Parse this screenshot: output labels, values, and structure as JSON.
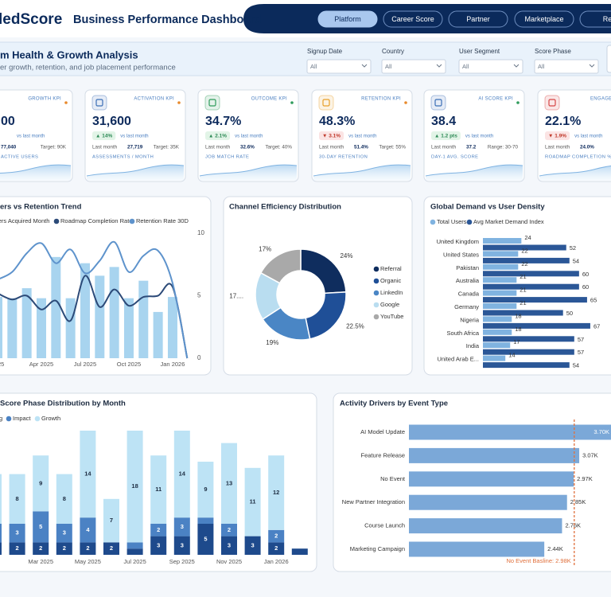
{
  "header": {
    "logo": "ledScore",
    "title": "Business Performance Dashboard",
    "nav": [
      "Platform",
      "Career Score",
      "Partner",
      "Marketplace",
      "Rep"
    ]
  },
  "page": {
    "title": "m Health & Growth Analysis",
    "subtitle": "er growth, retention, and job placement performance"
  },
  "filters": [
    {
      "label": "Signup Date",
      "value": "All"
    },
    {
      "label": "Country",
      "value": "All"
    },
    {
      "label": "User Segment",
      "value": "All"
    },
    {
      "label": "Score Phase",
      "value": "All"
    }
  ],
  "kpis": [
    {
      "tag": "GROWTH KPI",
      "value": "00",
      "delta_note": "vs last month",
      "last_value": "77,040",
      "target": "Target: 90K",
      "footer": "ACTIVE USERS",
      "icon_color": "#3b6fb6",
      "dot_color": "#e8892b"
    },
    {
      "tag": "ACTIVATION KPI",
      "value": "31,600",
      "delta": "▲ 14%",
      "delta_note": "vs last month",
      "last_label": "Last month",
      "last_value": "27,719",
      "target": "Target: 35K",
      "footer": "ASSESSMENTS / MONTH",
      "icon_color": "#3b6fb6",
      "dot_color": "#e8892b"
    },
    {
      "tag": "OUTCOME KPI",
      "value": "34.7%",
      "delta": "▲ 2.1%",
      "delta_note": "vs last month",
      "last_label": "Last month",
      "last_value": "32.6%",
      "target": "Target: 40%",
      "footer": "JOB MATCH RATE",
      "icon_color": "#2e9b5b",
      "dot_color": "#2e9b5b"
    },
    {
      "tag": "RETENTION KPI",
      "value": "48.3%",
      "delta": "▼ 3.1%",
      "delta_note": "vs last month",
      "last_label": "Last month",
      "last_value": "51.4%",
      "target": "Target: 55%",
      "footer": "30-DAY RETENTION",
      "icon_color": "#e8a02b",
      "dot_color": "#e8892b"
    },
    {
      "tag": "AI SCORE KPI",
      "value": "38.4",
      "delta": "▲ 1.2 pts",
      "delta_note": "vs last month",
      "last_label": "Last month",
      "last_value": "37.2",
      "target": "Range: 30-70",
      "footer": "DAY-1 AVG. SCORE",
      "icon_color": "#3b6fb6",
      "dot_color": "#2e9b5b"
    },
    {
      "tag": "ENGAGEM",
      "value": "22.1%",
      "delta": "▼ 1.9%",
      "delta_note": "vs last month",
      "last_label": "Last month",
      "last_value": "24.0%",
      "footer": "ROADMAP COMPLETION %",
      "icon_color": "#d64545",
      "dot_color": "#e8892b"
    }
  ],
  "chart_data": [
    {
      "type": "combo",
      "title": "ers vs Retention Trend",
      "categories": [
        "2025",
        null,
        null,
        "Apr 2025",
        null,
        null,
        "Jul 2025",
        null,
        null,
        "Oct 2025",
        null,
        null,
        "Jan 2026",
        null
      ],
      "series": [
        {
          "name": "sers Acquired Month",
          "kind": "bar",
          "color": "#a8d4ef",
          "values": [
            4.9,
            4.8,
            5.6,
            4.8,
            8.1,
            4.8,
            7.6,
            6.6,
            7.3,
            4.8,
            6.2,
            3.7,
            4.9,
            0
          ]
        },
        {
          "name": "Roadmap Completion Rate",
          "kind": "line",
          "color": "#2c4a78",
          "values": [
            5.2,
            4.7,
            5.0,
            3.9,
            4.6,
            3.0,
            6.6,
            4.1,
            5.5,
            4.2,
            4.9,
            5.0,
            5.7,
            0
          ]
        },
        {
          "name": "Retention Rate 30D",
          "kind": "line",
          "color": "#5e93cc",
          "values": [
            6.3,
            6.9,
            8.4,
            9.2,
            7.6,
            8.7,
            6.8,
            7.8,
            9.3,
            6.9,
            8.2,
            8.6,
            6.0,
            0
          ]
        }
      ],
      "ylim": [
        0,
        10
      ],
      "yticks": [
        0,
        5,
        10
      ]
    },
    {
      "type": "donut",
      "title": "Channel Efficiency Distribution",
      "categories": [
        "Referral",
        "Organic",
        "LinkedIn",
        "Google",
        "YouTube"
      ],
      "values": [
        24,
        22.5,
        19,
        17,
        17
      ],
      "value_labels": [
        "24%",
        "22.5%",
        "19%",
        "17....",
        "17%"
      ],
      "colors": [
        "#0f2d5e",
        "#1f4f97",
        "#4a86c5",
        "#b9ddf0",
        "#a9a9a9"
      ]
    },
    {
      "type": "hbar_grouped",
      "title": "Global Demand vs User Density",
      "categories": [
        "United Kingdom",
        "United States",
        "Pakistan",
        "Australia",
        "Canada",
        "Germany",
        "Nigeria",
        "South Africa",
        "India",
        "United Arab E..."
      ],
      "series": [
        {
          "name": "Total Users",
          "color": "#80b3e0",
          "values": [
            24,
            22,
            22,
            21,
            21,
            21,
            18,
            18,
            17,
            14
          ]
        },
        {
          "name": "Avg Market Demand Index",
          "color": "#2b5797",
          "values": [
            52,
            54,
            60,
            60,
            65,
            50,
            67,
            57,
            57,
            54
          ]
        }
      ],
      "xlim": [
        0,
        70
      ]
    },
    {
      "type": "stacked_bar",
      "title": "Score Phase Distribution by Month",
      "categories": [
        "2025",
        null,
        "Mar 2025",
        null,
        "May 2025",
        null,
        "Jul 2025",
        null,
        "Sep 2025",
        null,
        "Nov 2025",
        null,
        "Jan 2026",
        null
      ],
      "series": [
        {
          "name": "g",
          "color": "#1e4a8c",
          "values": [
            2,
            2,
            2,
            2,
            2,
            2,
            1,
            3,
            3,
            5,
            3,
            3,
            2,
            1
          ]
        },
        {
          "name": "Impact",
          "color": "#4b82c4",
          "values": [
            3,
            3,
            5,
            3,
            4,
            0,
            1,
            2,
            3,
            1,
            2,
            0,
            2,
            0
          ]
        },
        {
          "name": "Growth",
          "color": "#bde3f5",
          "values": [
            8,
            8,
            9,
            8,
            14,
            7,
            18,
            11,
            14,
            9,
            13,
            11,
            12,
            0
          ]
        }
      ],
      "ylim": [
        0,
        20
      ]
    },
    {
      "type": "hbar",
      "title": "Activity Drivers by Event Type",
      "categories": [
        "AI Model Update",
        "Feature Release",
        "No Event",
        "New Partner Integration",
        "Course Launch",
        "Marketing Campaign"
      ],
      "values": [
        3700,
        3070,
        2970,
        2850,
        2760,
        2440
      ],
      "value_labels": [
        "3.70K",
        "3.07K",
        "2.97K",
        "2.85K",
        "2.76K",
        "2.44K"
      ],
      "color": "#7ba8d8",
      "xlim": [
        0,
        3700
      ],
      "baseline": {
        "value": 2980,
        "label": "No Event Basline: 2.98K"
      },
      "baseline_color": "#e0703c"
    }
  ]
}
